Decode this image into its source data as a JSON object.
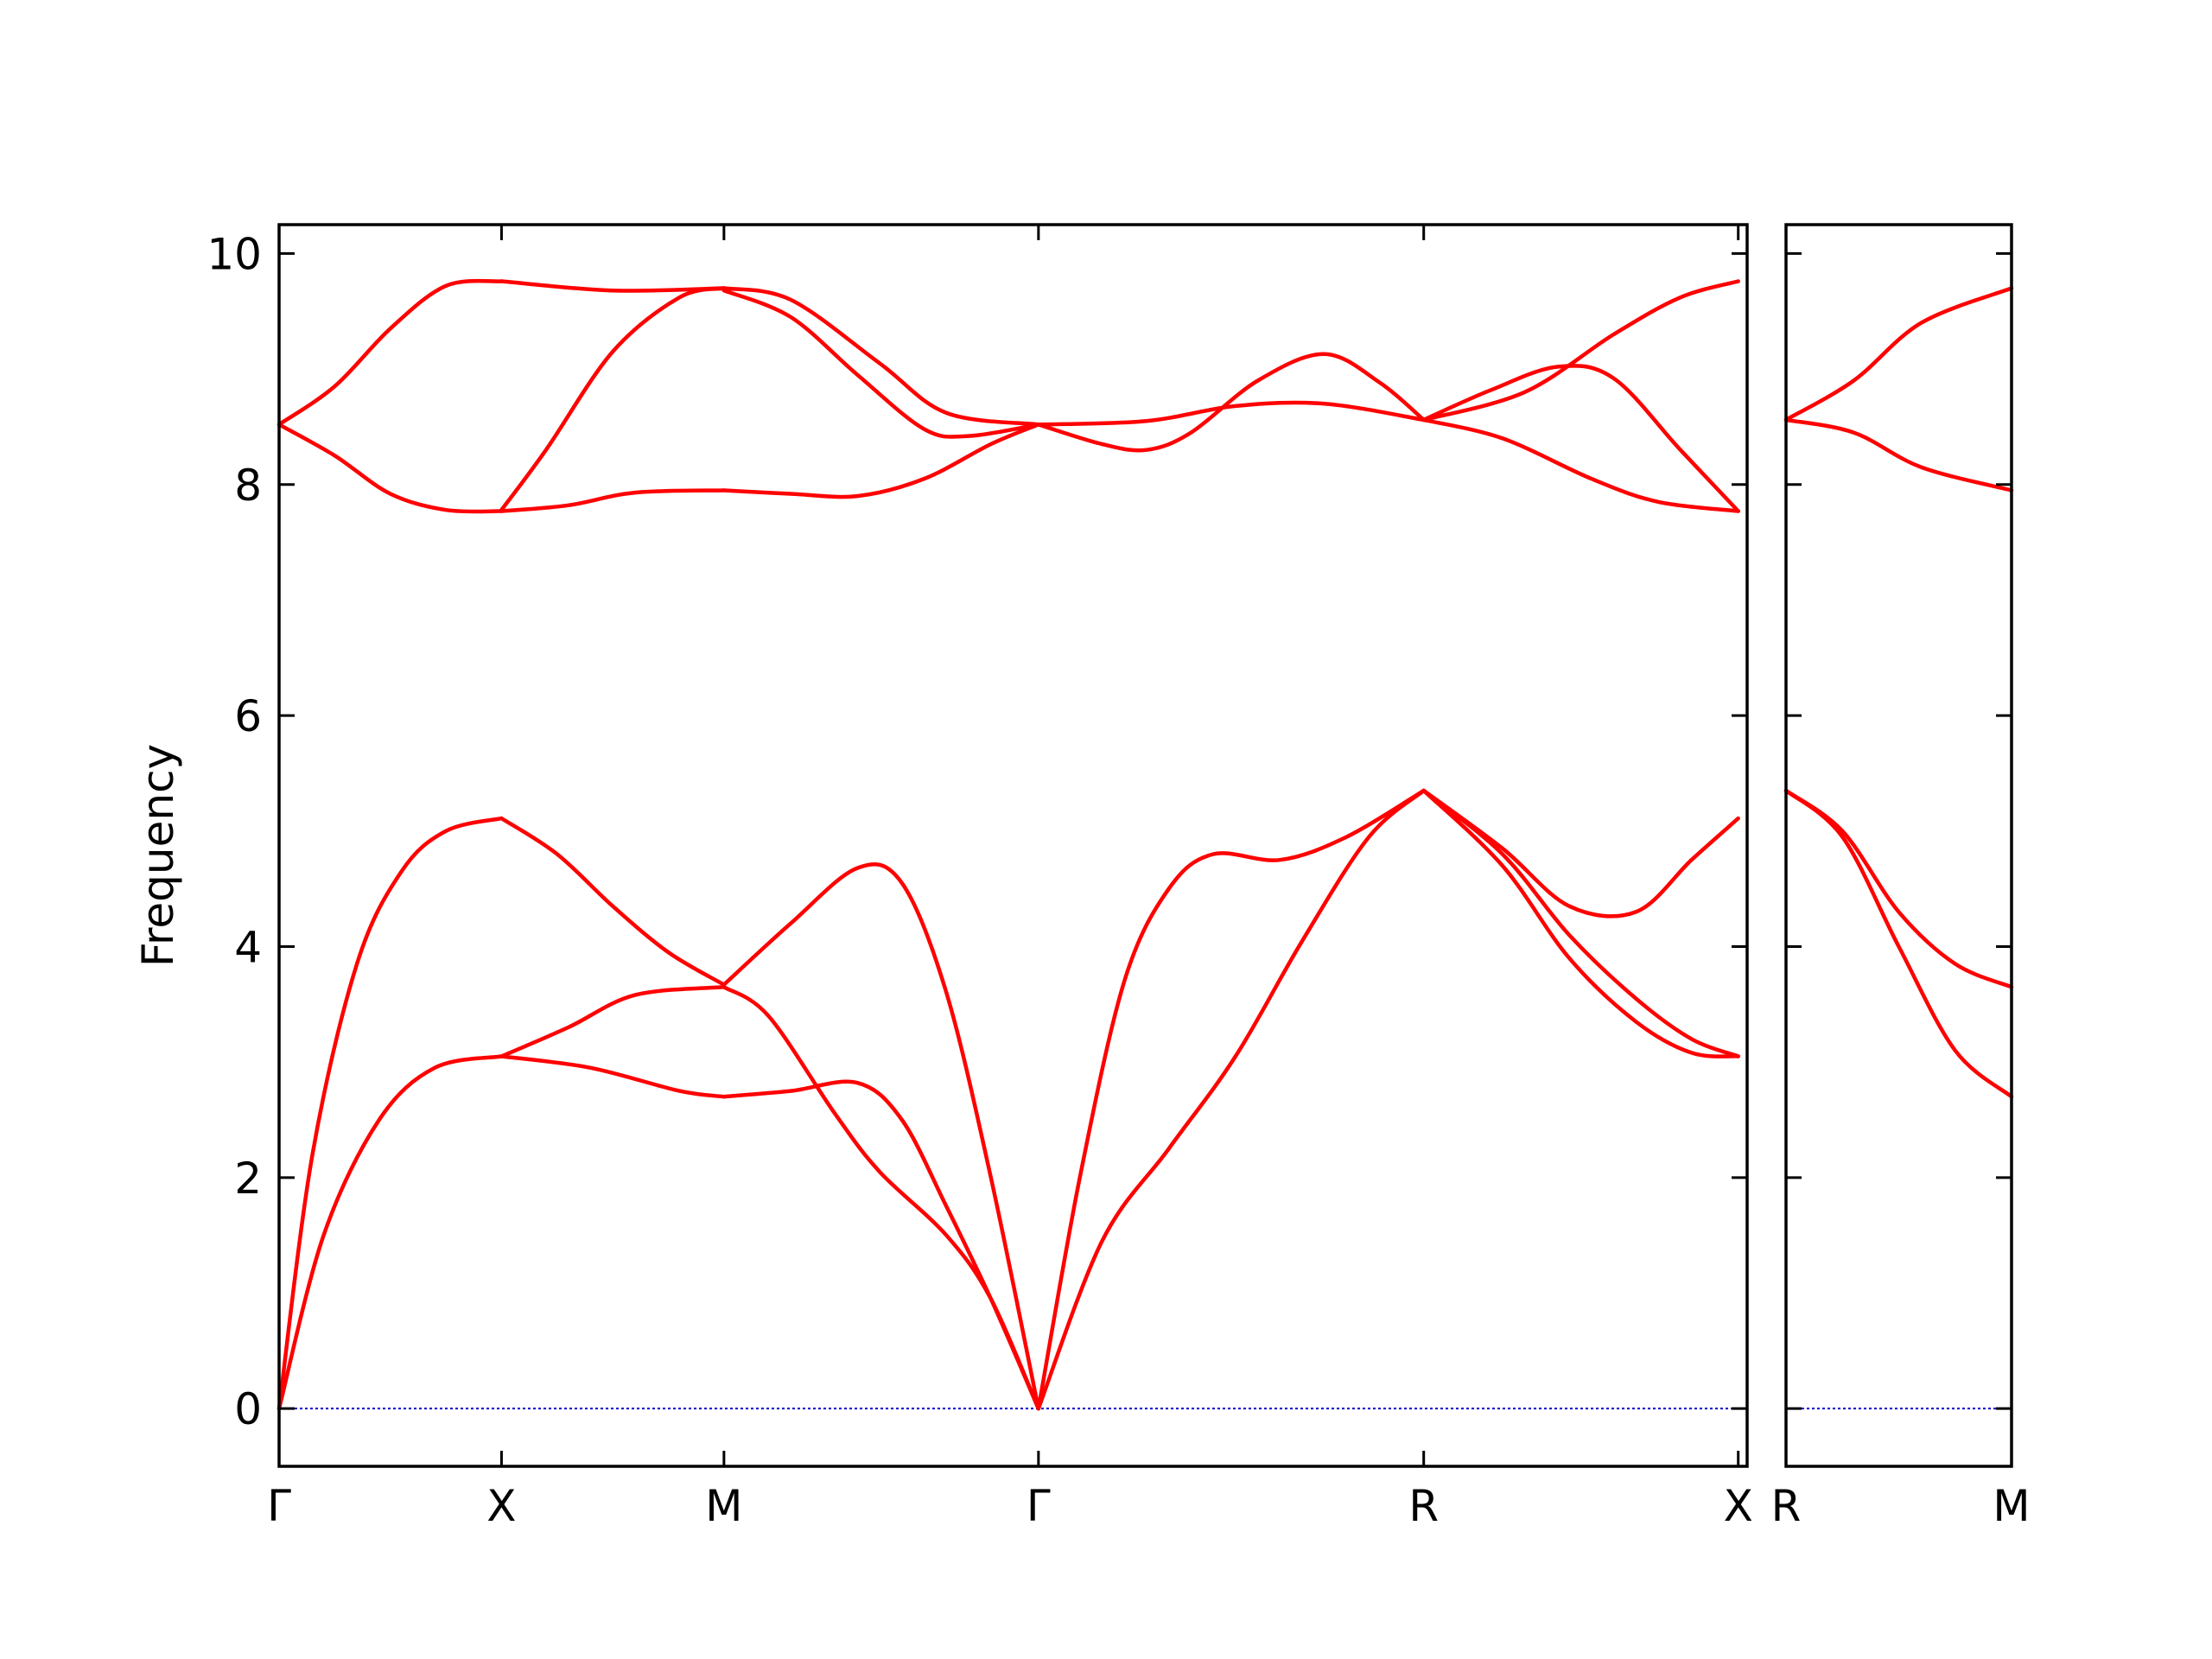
{
  "chart_data": {
    "type": "line",
    "ylabel": "Frequency",
    "ylim": [
      -0.5,
      10.25
    ],
    "yticks": [
      0,
      2,
      4,
      6,
      8,
      10
    ],
    "grid": false,
    "colors": {
      "band": "#ff0000",
      "zero_line": "#0000cc",
      "axes": "#000000"
    },
    "panels": [
      {
        "xlim": [
          0,
          6.6
        ],
        "xticks": [
          {
            "x": 0,
            "label": "Γ"
          },
          {
            "x": 1,
            "label": "X"
          },
          {
            "x": 2,
            "label": "M"
          },
          {
            "x": 3.414,
            "label": "Γ"
          },
          {
            "x": 5.146,
            "label": "R"
          },
          {
            "x": 6.56,
            "label": "X"
          }
        ],
        "bands": [
          {
            "x": [
              0,
              0.25,
              0.5,
              0.75,
              1
            ],
            "y": [
              8.52,
              8.85,
              9.35,
              9.72,
              9.76
            ]
          },
          {
            "x": [
              1,
              1.5,
              2
            ],
            "y": [
              9.76,
              9.68,
              9.7
            ]
          },
          {
            "x": [
              0,
              0.25,
              0.5,
              0.75,
              1
            ],
            "y": [
              8.52,
              8.25,
              7.92,
              7.78,
              7.77
            ]
          },
          {
            "x": [
              1,
              1.3,
              1.6,
              2
            ],
            "y": [
              7.77,
              7.82,
              7.93,
              7.95
            ]
          },
          {
            "x": [
              1,
              1.2,
              1.5,
              1.8,
              2
            ],
            "y": [
              7.78,
              8.3,
              9.15,
              9.62,
              9.7
            ]
          },
          {
            "x": [
              2,
              2.3,
              2.7,
              3.0,
              3.414
            ],
            "y": [
              9.7,
              9.6,
              9.05,
              8.62,
              8.52
            ]
          },
          {
            "x": [
              2,
              2.3,
              2.6,
              2.9,
              3.1,
              3.414
            ],
            "y": [
              9.68,
              9.45,
              8.95,
              8.48,
              8.42,
              8.52
            ]
          },
          {
            "x": [
              2,
              2.3,
              2.6,
              2.9,
              3.2,
              3.414
            ],
            "y": [
              7.95,
              7.92,
              7.9,
              8.05,
              8.35,
              8.52
            ]
          },
          {
            "x": [
              3.414,
              3.7,
              3.9,
              4.1,
              4.4,
              4.7,
              4.95,
              5.146
            ],
            "y": [
              8.52,
              8.35,
              8.3,
              8.45,
              8.9,
              9.13,
              8.88,
              8.56
            ]
          },
          {
            "x": [
              3.414,
              3.9,
              4.3,
              4.7,
              5.146
            ],
            "y": [
              8.52,
              8.55,
              8.68,
              8.7,
              8.56
            ]
          },
          {
            "x": [
              5.146,
              5.45,
              5.75,
              6.0,
              6.3,
              6.56
            ],
            "y": [
              8.56,
              8.82,
              9.02,
              8.92,
              8.3,
              7.77
            ]
          },
          {
            "x": [
              5.146,
              5.6,
              6.0,
              6.3,
              6.56
            ],
            "y": [
              8.56,
              8.8,
              9.3,
              9.62,
              9.76
            ]
          },
          {
            "x": [
              5.146,
              5.5,
              5.9,
              6.2,
              6.56
            ],
            "y": [
              8.56,
              8.4,
              8.05,
              7.85,
              7.77
            ]
          },
          {
            "x": [
              0,
              0.15,
              0.35,
              0.55,
              0.75,
              1
            ],
            "y": [
              0,
              2.2,
              3.85,
              4.65,
              5.0,
              5.11
            ]
          },
          {
            "x": [
              0,
              0.2,
              0.45,
              0.7,
              1
            ],
            "y": [
              0,
              1.5,
              2.5,
              2.95,
              3.05
            ]
          },
          {
            "x": [
              1,
              1.25,
              1.5,
              1.75,
              2
            ],
            "y": [
              5.11,
              4.8,
              4.35,
              3.95,
              3.67
            ]
          },
          {
            "x": [
              1,
              1.3,
              1.6,
              2
            ],
            "y": [
              3.05,
              3.3,
              3.58,
              3.65
            ]
          },
          {
            "x": [
              1,
              1.4,
              1.8,
              2
            ],
            "y": [
              3.05,
              2.95,
              2.75,
              2.7
            ]
          },
          {
            "x": [
              2,
              2.3,
              2.6,
              2.8,
              3.0,
              3.2,
              3.414
            ],
            "y": [
              3.67,
              4.2,
              4.68,
              4.55,
              3.6,
              2.0,
              0
            ]
          },
          {
            "x": [
              2,
              2.2,
              2.5,
              2.7,
              3.0,
              3.2,
              3.414
            ],
            "y": [
              3.65,
              3.4,
              2.55,
              2.05,
              1.5,
              0.95,
              0
            ]
          },
          {
            "x": [
              2,
              2.3,
              2.6,
              2.8,
              3.0,
              3.2,
              3.414
            ],
            "y": [
              2.7,
              2.75,
              2.82,
              2.5,
              1.75,
              0.95,
              0
            ]
          },
          {
            "x": [
              3.414,
              3.6,
              3.8,
              4.0,
              4.2,
              4.5,
              4.8,
              5.146
            ],
            "y": [
              0,
              2.0,
              3.7,
              4.5,
              4.8,
              4.75,
              4.95,
              5.35
            ]
          },
          {
            "x": [
              3.414,
              3.7,
              4.0,
              4.3,
              4.6,
              4.9,
              5.146
            ],
            "y": [
              0,
              1.45,
              2.25,
              3.05,
              4.05,
              4.95,
              5.35
            ]
          },
          {
            "x": [
              5.146,
              5.5,
              5.8,
              6.1,
              6.35,
              6.56
            ],
            "y": [
              5.35,
              4.85,
              4.35,
              4.3,
              4.75,
              5.11
            ]
          },
          {
            "x": [
              5.146,
              5.5,
              5.8,
              6.1,
              6.35,
              6.56
            ],
            "y": [
              5.35,
              4.7,
              3.9,
              3.35,
              3.08,
              3.05
            ]
          },
          {
            "x": [
              5.146,
              5.5,
              5.8,
              6.1,
              6.35,
              6.56
            ],
            "y": [
              5.35,
              4.8,
              4.1,
              3.55,
              3.2,
              3.05
            ]
          }
        ]
      },
      {
        "xlim": [
          0,
          1
        ],
        "xticks": [
          {
            "x": 0,
            "label": "R"
          },
          {
            "x": 1,
            "label": "M"
          }
        ],
        "bands": [
          {
            "x": [
              0,
              0.3,
              0.6,
              1
            ],
            "y": [
              8.56,
              8.9,
              9.4,
              9.7
            ]
          },
          {
            "x": [
              0,
              0.3,
              0.6,
              1
            ],
            "y": [
              8.56,
              8.45,
              8.15,
              7.95
            ]
          },
          {
            "x": [
              0,
              0.25,
              0.5,
              0.75,
              1
            ],
            "y": [
              5.35,
              5.0,
              4.3,
              3.85,
              3.65
            ]
          },
          {
            "x": [
              0,
              0.25,
              0.5,
              0.75,
              1
            ],
            "y": [
              5.35,
              4.95,
              4.0,
              3.1,
              2.7
            ]
          }
        ]
      }
    ]
  }
}
